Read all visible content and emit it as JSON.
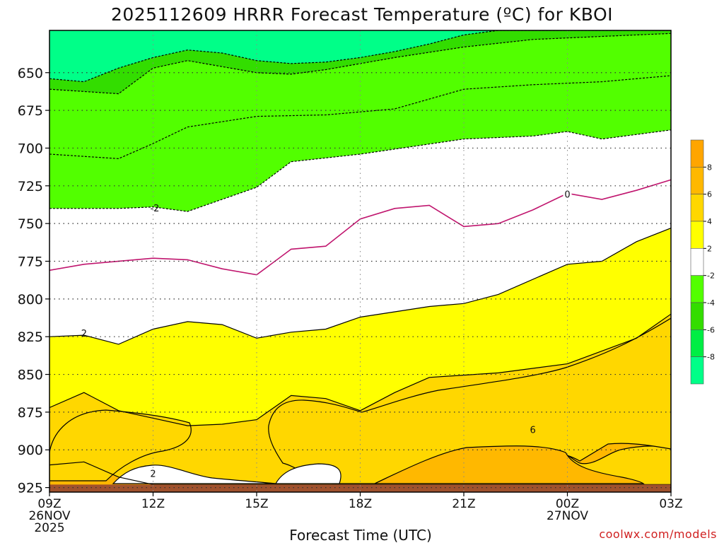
{
  "chart_data": {
    "type": "contour",
    "title": "2025112609 HRRR Forecast Temperature (ºC) for KBOI",
    "xlabel": "Forecast Time (UTC)",
    "ylabel": "",
    "credit": "coolwx.com/models",
    "x_ticks": [
      {
        "hour": 0,
        "l1": "09Z",
        "l2": "26NOV",
        "l3": "2025"
      },
      {
        "hour": 3,
        "l1": "12Z",
        "l2": "",
        "l3": ""
      },
      {
        "hour": 6,
        "l1": "15Z",
        "l2": "",
        "l3": ""
      },
      {
        "hour": 9,
        "l1": "18Z",
        "l2": "",
        "l3": ""
      },
      {
        "hour": 12,
        "l1": "21Z",
        "l2": "",
        "l3": ""
      },
      {
        "hour": 15,
        "l1": "00Z",
        "l2": "27NOV",
        "l3": ""
      },
      {
        "hour": 18,
        "l1": "03Z",
        "l2": "",
        "l3": ""
      }
    ],
    "x_range_hours": [
      0,
      18
    ],
    "y_ticks": [
      650,
      675,
      700,
      725,
      750,
      775,
      800,
      825,
      850,
      875,
      900,
      925
    ],
    "y_range_mb": [
      622,
      928
    ],
    "grid": true,
    "ground": {
      "from_mb": 923,
      "color": "#a0522d"
    },
    "colorbar": {
      "labels": [
        "8",
        "6",
        "4",
        "2",
        "-2",
        "-4",
        "-6",
        "-8"
      ],
      "bands": [
        {
          "range": [
            8,
            10
          ],
          "color": "#ffa500"
        },
        {
          "range": [
            6,
            8
          ],
          "color": "#ffb800"
        },
        {
          "range": [
            4,
            6
          ],
          "color": "#ffd700"
        },
        {
          "range": [
            2,
            4
          ],
          "color": "#ffff00"
        },
        {
          "range": [
            -2,
            2
          ],
          "color": "#ffffff"
        },
        {
          "range": [
            -4,
            -2
          ],
          "color": "#52ff00"
        },
        {
          "range": [
            -6,
            -4
          ],
          "color": "#33dd00"
        },
        {
          "range": [
            -8,
            -6
          ],
          "color": "#00ee44"
        },
        {
          "range": [
            -10,
            -8
          ],
          "color": "#00ff88"
        }
      ]
    },
    "isotherms": [
      {
        "level": -8,
        "color": "#00ff88",
        "points": [
          [
            0,
            654
          ],
          [
            1,
            656
          ],
          [
            2,
            647
          ],
          [
            3,
            640
          ],
          [
            4,
            635
          ],
          [
            5,
            637
          ],
          [
            6,
            642
          ],
          [
            7,
            644
          ],
          [
            8,
            643
          ],
          [
            9,
            640
          ],
          [
            10,
            636
          ],
          [
            11,
            631
          ],
          [
            12,
            625
          ],
          [
            13,
            622
          ],
          [
            15,
            622
          ],
          [
            18,
            622
          ]
        ]
      },
      {
        "level": -6,
        "color": "#33dd00",
        "points": [
          [
            0,
            661
          ],
          [
            2,
            664
          ],
          [
            3,
            647
          ],
          [
            4,
            642
          ],
          [
            6,
            650
          ],
          [
            7,
            651
          ],
          [
            8,
            648
          ],
          [
            10,
            640
          ],
          [
            12,
            633
          ],
          [
            14,
            628
          ],
          [
            16,
            626
          ],
          [
            18,
            624
          ]
        ]
      },
      {
        "level": -4,
        "color": "#52ff00",
        "points": [
          [
            0,
            704
          ],
          [
            2,
            707
          ],
          [
            3,
            697
          ],
          [
            4,
            686
          ],
          [
            6,
            679
          ],
          [
            8,
            678
          ],
          [
            10,
            674
          ],
          [
            12,
            661
          ],
          [
            14,
            658
          ],
          [
            16,
            656
          ],
          [
            18,
            652
          ]
        ]
      },
      {
        "level": -2,
        "color": "#52ff00",
        "points": [
          [
            0,
            740
          ],
          [
            2,
            740
          ],
          [
            3,
            739
          ],
          [
            4,
            742
          ],
          [
            6,
            726
          ],
          [
            7,
            709
          ],
          [
            9,
            704
          ],
          [
            12,
            694
          ],
          [
            14,
            692
          ],
          [
            15,
            689
          ],
          [
            16,
            694
          ],
          [
            18,
            688
          ]
        ]
      },
      {
        "level": 0,
        "color": null,
        "points": [
          [
            0,
            781
          ],
          [
            1,
            777
          ],
          [
            3,
            773
          ],
          [
            4,
            774
          ],
          [
            5,
            780
          ],
          [
            6,
            784
          ],
          [
            7,
            767
          ],
          [
            8,
            765
          ],
          [
            9,
            747
          ],
          [
            10,
            740
          ],
          [
            11,
            738
          ],
          [
            12,
            752
          ],
          [
            13,
            750
          ],
          [
            14,
            741
          ],
          [
            15,
            730
          ],
          [
            16,
            734
          ],
          [
            17,
            728
          ],
          [
            18,
            721
          ]
        ]
      },
      {
        "level": 2,
        "color": "#ffff00",
        "points": [
          [
            0,
            825
          ],
          [
            1,
            824
          ],
          [
            2,
            830
          ],
          [
            3,
            820
          ],
          [
            4,
            815
          ],
          [
            5,
            817
          ],
          [
            6,
            826
          ],
          [
            7,
            822
          ],
          [
            8,
            820
          ],
          [
            9,
            812
          ],
          [
            11,
            805
          ],
          [
            12,
            803
          ],
          [
            13,
            797
          ],
          [
            15,
            777
          ],
          [
            16,
            775
          ],
          [
            17,
            762
          ],
          [
            18,
            753
          ]
        ]
      },
      {
        "level": 4,
        "color": "#ffd700",
        "points": [
          [
            0,
            872
          ],
          [
            1,
            862
          ],
          [
            2,
            874
          ],
          [
            3,
            879
          ],
          [
            4,
            884
          ],
          [
            5,
            883
          ],
          [
            6,
            880
          ],
          [
            7,
            864
          ],
          [
            8,
            866
          ],
          [
            9,
            874
          ],
          [
            10,
            862
          ],
          [
            11,
            852
          ],
          [
            13,
            849
          ],
          [
            15,
            843
          ],
          [
            17,
            826
          ],
          [
            18,
            810
          ]
        ]
      },
      {
        "level": 6,
        "color": "#ffb800",
        "points": [
          [
            0,
            910
          ],
          [
            1,
            908
          ],
          [
            2,
            918
          ],
          [
            3,
            923
          ],
          [
            18,
            923
          ]
        ]
      }
    ],
    "contour_labels": [
      {
        "text": "-2",
        "hour": 3.05,
        "mb": 740
      },
      {
        "text": "0",
        "hour": 15.0,
        "mb": 731
      },
      {
        "text": "2",
        "hour": 1.0,
        "mb": 823
      },
      {
        "text": "2",
        "hour": 3.0,
        "mb": 916
      },
      {
        "text": "6",
        "hour": 14.0,
        "mb": 887
      }
    ]
  }
}
